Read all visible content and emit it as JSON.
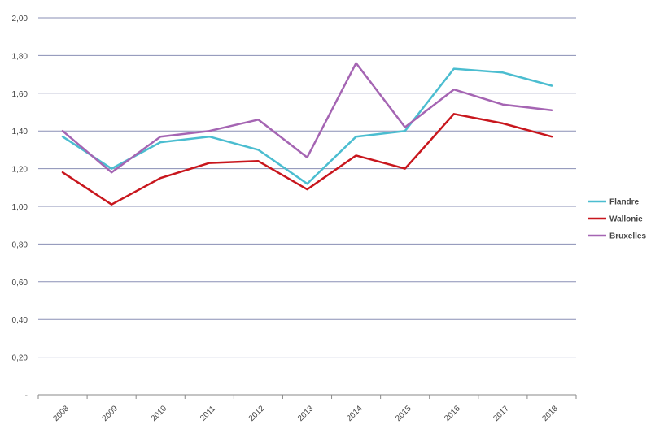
{
  "chart_data": {
    "type": "line",
    "title": "",
    "xlabel": "",
    "ylabel": "",
    "categories": [
      "2008",
      "2009",
      "2010",
      "2011",
      "2012",
      "2013",
      "2014",
      "2015",
      "2016",
      "2017",
      "2018"
    ],
    "ylim": [
      0,
      2.0
    ],
    "y_ticks": [
      0,
      0.2,
      0.4,
      0.6,
      0.8,
      1.0,
      1.2,
      1.4,
      1.6,
      1.8,
      2.0
    ],
    "y_tick_labels": [
      "-",
      "0,20",
      "0,40",
      "0,60",
      "0,80",
      "1,00",
      "1,20",
      "1,40",
      "1,60",
      "1,80",
      "2,00"
    ],
    "grid": true,
    "legend_position": "right",
    "series": [
      {
        "name": "Flandre",
        "color": "#4bbdd0",
        "values": [
          1.37,
          1.2,
          1.34,
          1.37,
          1.3,
          1.12,
          1.37,
          1.4,
          1.73,
          1.71,
          1.64
        ]
      },
      {
        "name": "Wallonie",
        "color": "#c8161d",
        "values": [
          1.18,
          1.01,
          1.15,
          1.23,
          1.24,
          1.09,
          1.27,
          1.2,
          1.49,
          1.44,
          1.37
        ]
      },
      {
        "name": "Bruxelles",
        "color": "#a565b3",
        "values": [
          1.4,
          1.18,
          1.37,
          1.4,
          1.46,
          1.26,
          1.76,
          1.42,
          1.62,
          1.54,
          1.51
        ]
      }
    ],
    "gridline_color": "#8a8fb5"
  }
}
